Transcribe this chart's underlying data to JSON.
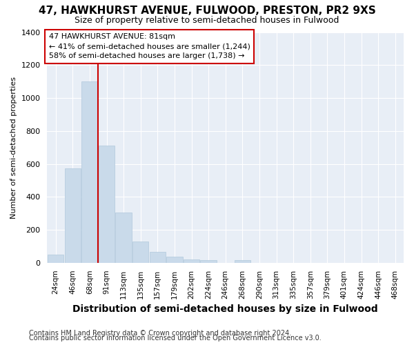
{
  "title": "47, HAWKHURST AVENUE, FULWOOD, PRESTON, PR2 9XS",
  "subtitle": "Size of property relative to semi-detached houses in Fulwood",
  "xlabel": "Distribution of semi-detached houses by size in Fulwood",
  "ylabel": "Number of semi-detached properties",
  "footer_line1": "Contains HM Land Registry data © Crown copyright and database right 2024.",
  "footer_line2": "Contains public sector information licensed under the Open Government Licence v3.0.",
  "bins": [
    "24sqm",
    "46sqm",
    "68sqm",
    "91sqm",
    "113sqm",
    "135sqm",
    "157sqm",
    "179sqm",
    "202sqm",
    "224sqm",
    "246sqm",
    "268sqm",
    "290sqm",
    "313sqm",
    "335sqm",
    "357sqm",
    "379sqm",
    "401sqm",
    "424sqm",
    "446sqm",
    "468sqm"
  ],
  "values": [
    48,
    575,
    1100,
    710,
    305,
    130,
    68,
    35,
    20,
    18,
    0,
    18,
    0,
    0,
    0,
    0,
    0,
    0,
    0,
    0,
    0
  ],
  "bar_color": "#c9daea",
  "bar_edge_color": "#b0c8dc",
  "property_bin_index": 2,
  "property_label": "47 HAWKHURST AVENUE: 81sqm",
  "annotation_line1": "← 41% of semi-detached houses are smaller (1,244)",
  "annotation_line2": "58% of semi-detached houses are larger (1,738) →",
  "box_edge_color": "#cc0000",
  "vline_color": "#cc0000",
  "ylim": [
    0,
    1400
  ],
  "yticks": [
    0,
    200,
    400,
    600,
    800,
    1000,
    1200,
    1400
  ],
  "figure_bg": "#ffffff",
  "plot_bg": "#e8eef6",
  "grid_color": "#ffffff",
  "title_fontsize": 11,
  "subtitle_fontsize": 9,
  "ylabel_fontsize": 8,
  "xlabel_fontsize": 10,
  "footer_fontsize": 7
}
